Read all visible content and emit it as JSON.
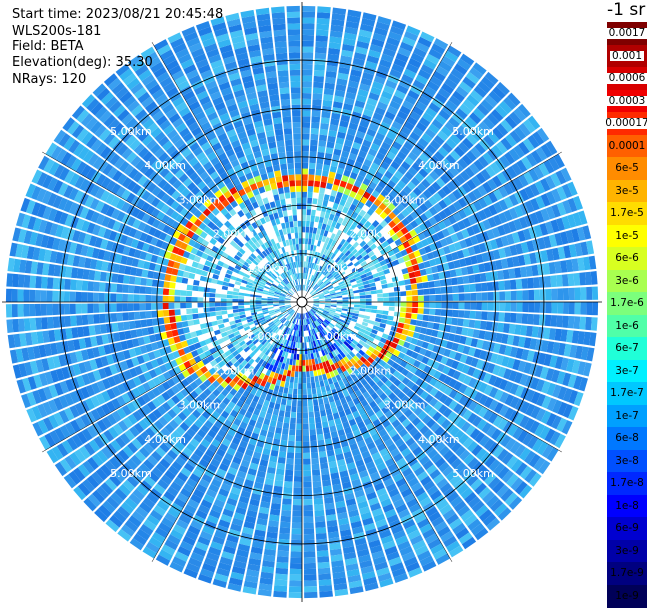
{
  "header": {
    "start_time": "Start time: 2023/08/21 20:45:48",
    "instrument": "WLS200s-181",
    "field": "Field: BETA",
    "elevation": "Elevation(deg): 35.30",
    "nrays": "NRays: 120"
  },
  "colorbar": {
    "unit_label": "-1 sr",
    "levels": [
      {
        "label": "0.0017",
        "color": "#7f0000",
        "boxed": true
      },
      {
        "label": "0.001",
        "color": "#b00000",
        "boxed": true
      },
      {
        "label": "0.0006",
        "color": "#d80000",
        "boxed": true
      },
      {
        "label": "0.0003",
        "color": "#f00000",
        "boxed": true
      },
      {
        "label": "0.00017",
        "color": "#ff2a00",
        "boxed": true
      },
      {
        "label": "0.0001",
        "color": "#ff6000",
        "boxed": false
      },
      {
        "label": "6e-5",
        "color": "#ff8c00",
        "boxed": false
      },
      {
        "label": "3e-5",
        "color": "#ffb400",
        "boxed": false
      },
      {
        "label": "1.7e-5",
        "color": "#ffdc00",
        "boxed": false
      },
      {
        "label": "1e-5",
        "color": "#ffff00",
        "boxed": false
      },
      {
        "label": "6e-6",
        "color": "#d8ff20",
        "boxed": false
      },
      {
        "label": "3e-6",
        "color": "#a8ff50",
        "boxed": false
      },
      {
        "label": "1.7e-6",
        "color": "#7cff7c",
        "boxed": false
      },
      {
        "label": "1e-6",
        "color": "#50ffa8",
        "boxed": false
      },
      {
        "label": "6e-7",
        "color": "#20ffd8",
        "boxed": false
      },
      {
        "label": "3e-7",
        "color": "#00f0ff",
        "boxed": false
      },
      {
        "label": "1.7e-7",
        "color": "#00c8ff",
        "boxed": false
      },
      {
        "label": "1e-7",
        "color": "#00a0ff",
        "boxed": false
      },
      {
        "label": "6e-8",
        "color": "#0078ff",
        "boxed": false
      },
      {
        "label": "3e-8",
        "color": "#0050ff",
        "boxed": false
      },
      {
        "label": "1.7e-8",
        "color": "#0028ff",
        "boxed": false
      },
      {
        "label": "1e-8",
        "color": "#0000ff",
        "boxed": false
      },
      {
        "label": "6e-9",
        "color": "#0000d0",
        "boxed": false
      },
      {
        "label": "3e-9",
        "color": "#0000a8",
        "boxed": false
      },
      {
        "label": "1.7e-9",
        "color": "#000080",
        "boxed": false
      },
      {
        "label": "1e-9",
        "color": "#000058",
        "boxed": false
      }
    ]
  },
  "chart_data": {
    "type": "heatmap",
    "projection": "polar-ppi",
    "rays": 120,
    "range_rings_km": [
      1,
      2,
      3,
      4,
      5
    ],
    "ring_labels": [
      "1.00km",
      "2.00km",
      "3.00km",
      "4.00km",
      "5.00km"
    ],
    "max_range_km": 6.2,
    "background_color": "#2a8ae8",
    "high_signal_ring": {
      "description_color": "#ff3000",
      "radius_km_by_bearing_deg": [
        [
          0,
          2.45
        ],
        [
          30,
          2.55
        ],
        [
          60,
          2.45
        ],
        [
          90,
          2.25
        ],
        [
          120,
          1.95
        ],
        [
          150,
          1.45
        ],
        [
          180,
          1.2
        ],
        [
          210,
          1.85
        ],
        [
          240,
          2.6
        ],
        [
          270,
          2.75
        ],
        [
          300,
          2.7
        ],
        [
          330,
          2.55
        ]
      ]
    }
  }
}
